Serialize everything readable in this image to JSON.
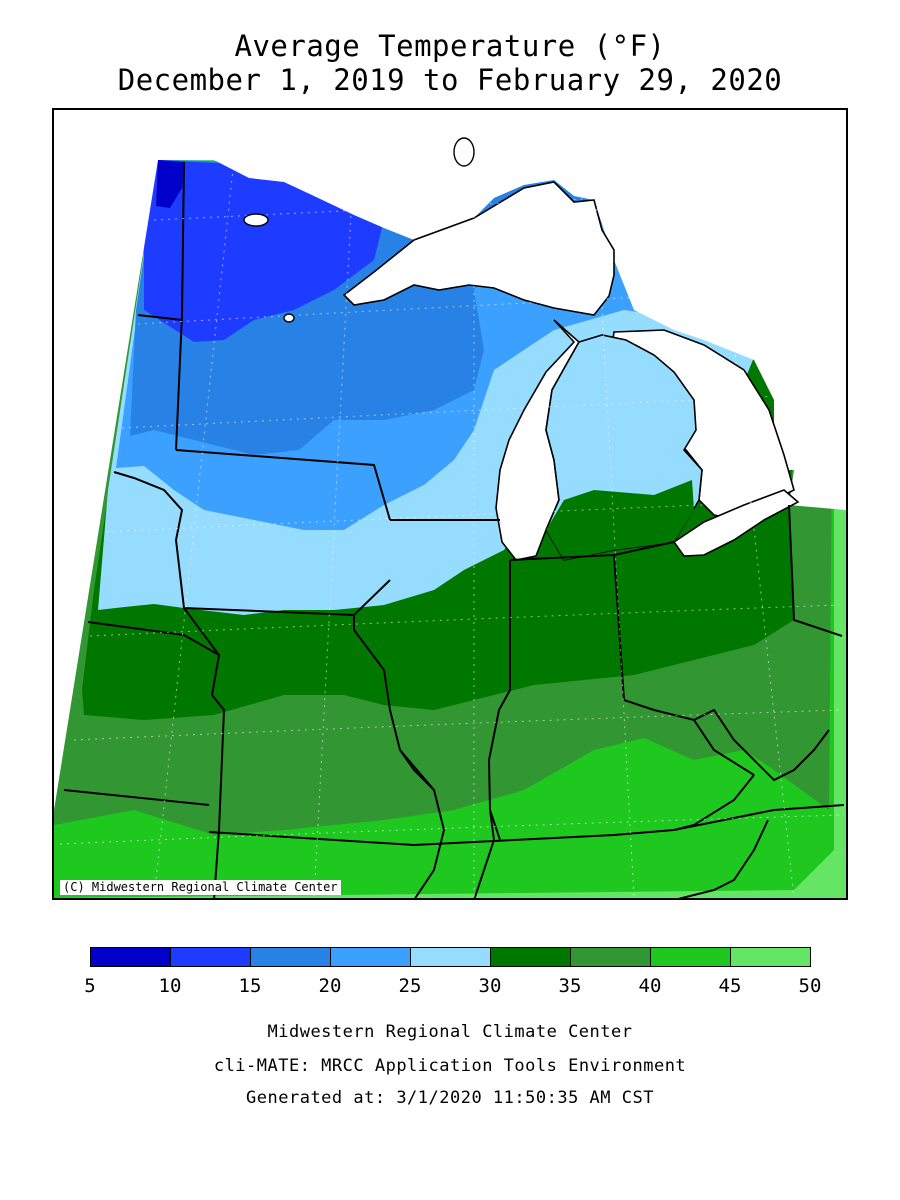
{
  "title": {
    "line1": "Average Temperature (°F)",
    "line2": "December 1, 2019 to February 29, 2020"
  },
  "map": {
    "credit": "(C) Midwestern Regional Climate Center",
    "legend": [
      {
        "range": "5-10",
        "color": "#0000c8"
      },
      {
        "range": "10-15",
        "color": "#1e3cff"
      },
      {
        "range": "15-20",
        "color": "#2882e6"
      },
      {
        "range": "20-25",
        "color": "#3ca0ff"
      },
      {
        "range": "25-30",
        "color": "#96dcff"
      },
      {
        "range": "30-35",
        "color": "#007800"
      },
      {
        "range": "35-40",
        "color": "#329632"
      },
      {
        "range": "40-45",
        "color": "#1ec81e"
      },
      {
        "range": "45-50",
        "color": "#64e664"
      }
    ],
    "legend_ticks": [
      "5",
      "10",
      "15",
      "20",
      "25",
      "30",
      "35",
      "40",
      "45",
      "50"
    ],
    "lake_color": "#ffffff"
  },
  "footer": {
    "line1": "Midwestern Regional Climate Center",
    "line2": "cli-MATE: MRCC Application Tools Environment",
    "line3": "Generated at: 3/1/2020 11:50:35 AM CST"
  }
}
